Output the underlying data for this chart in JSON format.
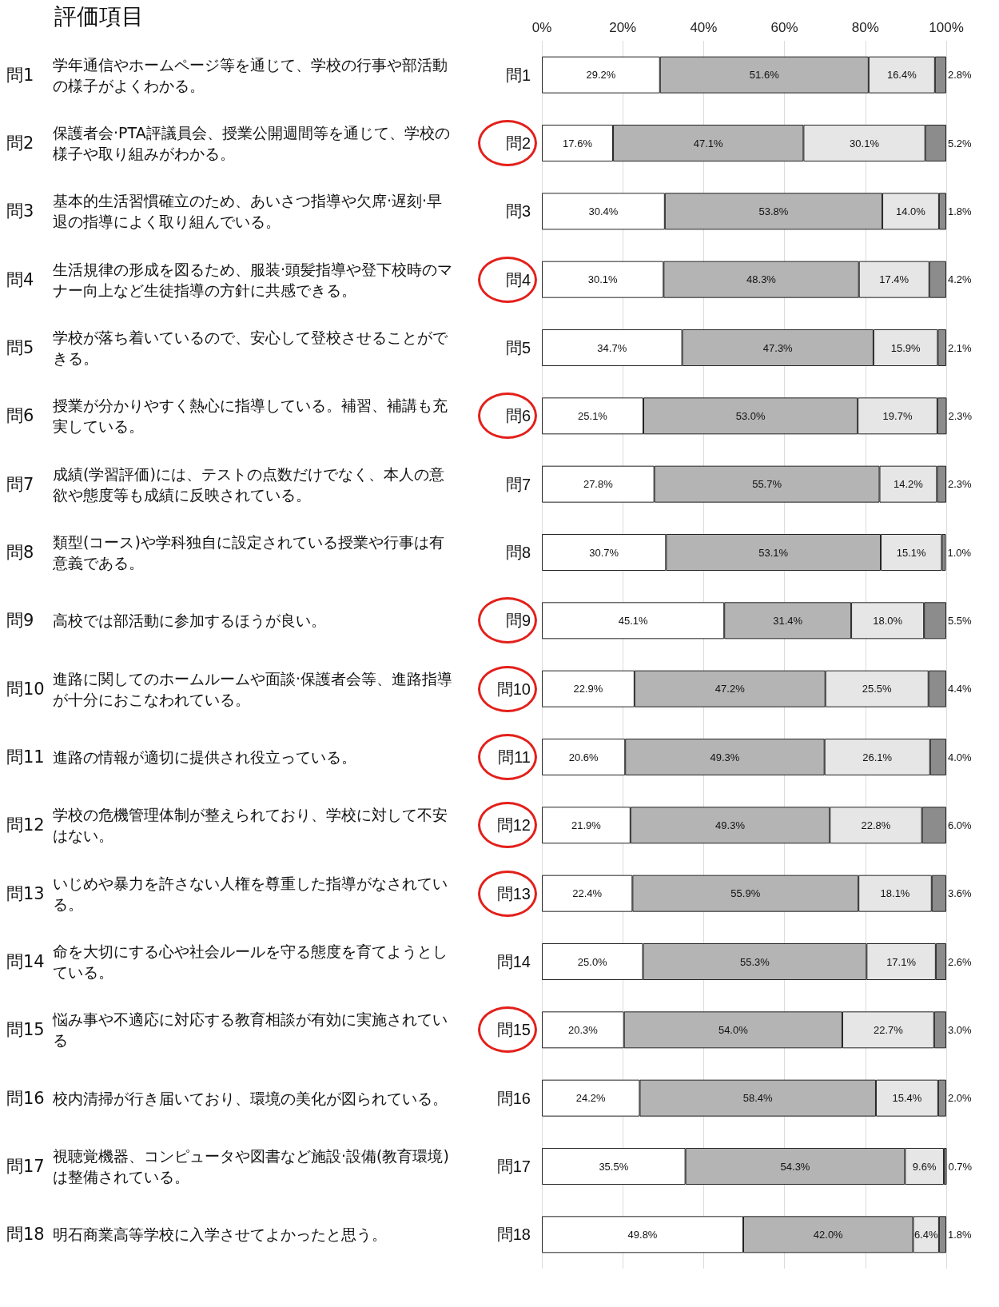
{
  "chart_data": {
    "type": "bar",
    "orientation": "horizontal",
    "stacked": true,
    "title": "評価項目",
    "categories": [
      "問1",
      "問2",
      "問3",
      "問4",
      "問5",
      "問6",
      "問7",
      "問8",
      "問9",
      "問10",
      "問11",
      "問12",
      "問13",
      "問14",
      "問15",
      "問16",
      "問17",
      "問18"
    ],
    "annotations": [
      "学年通信やホームページ等を通じて、学校の行事や部活動の様子がよくわかる。",
      "保護者会·PTA評議員会、授業公開週間等を通じて、学校の様子や取り組みがわかる。",
      "基本的生活習慣確立のため、あいさつ指導や欠席·遅刻·早退の指導によく取り組んでいる。",
      "生活規律の形成を図るため、服装·頭髪指導や登下校時のマナー向上など生徒指導の方針に共感できる。",
      "学校が落ち着いているので、安心して登校させることができる。",
      "授業が分かりやすく熱心に指導している。補習、補講も充実している。",
      "成績(学習評価)には、テストの点数だけでなく、本人の意欲や態度等も成績に反映されている。",
      "類型(コース)や学科独自に設定されている授業や行事は有意義である。",
      "高校では部活動に参加するほうが良い。",
      "進路に関してのホームルームや面談·保護者会等、進路指導が十分におこなわれている。",
      "進路の情報が適切に提供され役立っている。",
      "学校の危機管理体制が整えられており、学校に対して不安はない。",
      "いじめや暴力を許さない人権を尊重した指導がなされている。",
      "命を大切にする心や社会ルールを守る態度を育てようとしている。",
      "悩み事や不適応に対応する教育相談が有効に実施されている",
      "校内清掃が行き届いており、環境の美化が図られている。",
      "視聴覚機器、コンピュータや図書など施設·設備(教育環境)は整備されている。",
      "明石商業高等学校に入学させてよかったと思う。"
    ],
    "xlim": [
      0,
      100
    ],
    "xticks": [
      {
        "value": 0,
        "label": "0%"
      },
      {
        "value": 20,
        "label": "20%"
      },
      {
        "value": 40,
        "label": "40%"
      },
      {
        "value": 60,
        "label": "60%"
      },
      {
        "value": 80,
        "label": "80%"
      },
      {
        "value": 100,
        "label": "100%"
      }
    ],
    "grid": "x",
    "series": [
      {
        "color": "#ffffff",
        "values": [
          29.2,
          17.6,
          30.4,
          30.1,
          34.7,
          25.1,
          27.8,
          30.7,
          45.1,
          22.9,
          20.6,
          21.9,
          22.4,
          25.0,
          20.3,
          24.2,
          35.5,
          49.8
        ],
        "value_labels": [
          "29.2%",
          "17.6%",
          "30.4%",
          "30.1%",
          "34.7%",
          "25.1%",
          "27.8%",
          "30.7%",
          "45.1%",
          "22.9%",
          "20.6%",
          "21.9%",
          "22.4%",
          "25.0%",
          "20.3%",
          "24.2%",
          "35.5%",
          "49.8%"
        ]
      },
      {
        "color": "#b4b4b4",
        "values": [
          51.6,
          47.1,
          53.8,
          48.3,
          47.3,
          53.0,
          55.7,
          53.1,
          31.4,
          47.2,
          49.3,
          49.3,
          55.9,
          55.3,
          54.0,
          58.4,
          54.3,
          42.0
        ],
        "value_labels": [
          "51.6%",
          "47.1%",
          "53.8%",
          "48.3%",
          "47.3%",
          "53.0%",
          "55.7%",
          "53.1%",
          "31.4%",
          "47.2%",
          "49.3%",
          "49.3%",
          "55.9%",
          "55.3%",
          "54.0%",
          "58.4%",
          "54.3%",
          "42.0%"
        ]
      },
      {
        "color": "#e6e6e6",
        "values": [
          16.4,
          30.1,
          14.0,
          17.4,
          15.9,
          19.7,
          14.2,
          15.1,
          18.0,
          25.5,
          26.1,
          22.8,
          18.1,
          17.1,
          22.7,
          15.4,
          9.6,
          6.4
        ],
        "value_labels": [
          "16.4%",
          "30.1%",
          "14.0%",
          "17.4%",
          "15.9%",
          "19.7%",
          "14.2%",
          "15.1%",
          "18.0%",
          "25.5%",
          "26.1%",
          "22.8%",
          "18.1%",
          "17.1%",
          "22.7%",
          "15.4%",
          "9.6%",
          "6.4%"
        ]
      },
      {
        "color": "#8c8c8c",
        "values": [
          2.8,
          5.2,
          1.8,
          4.2,
          2.1,
          2.3,
          2.3,
          1.0,
          5.5,
          4.4,
          4.0,
          6.0,
          3.6,
          2.6,
          3.0,
          2.0,
          0.7,
          1.8
        ],
        "value_labels": [
          "2.8%",
          "5.2%",
          "1.8%",
          "4.2%",
          "2.1%",
          "2.3%",
          "2.3%",
          "1.0%",
          "5.5%",
          "4.4%",
          "4.0%",
          "6.0%",
          "3.6%",
          "2.6%",
          "3.0%",
          "2.0%",
          "0.7%",
          "1.8%"
        ]
      }
    ]
  }
}
